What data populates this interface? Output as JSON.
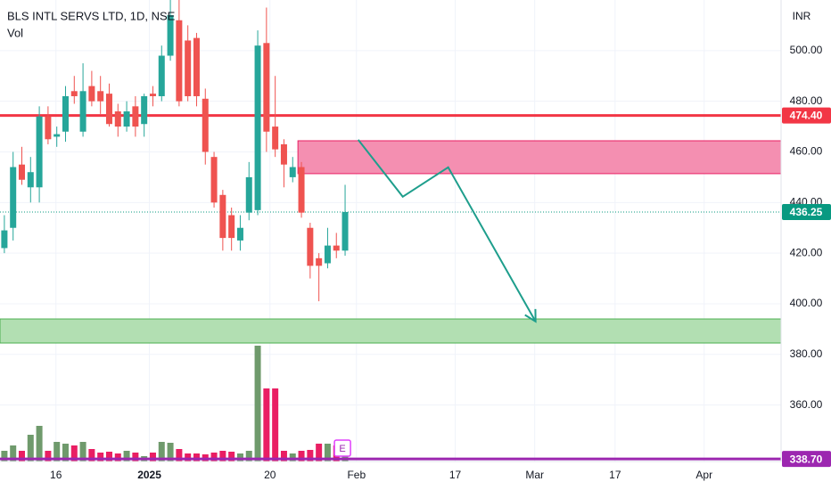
{
  "chart_data": {
    "type": "candlestick",
    "title": "BLS INTL SERVS LTD, 1D, NSE",
    "currency": "INR",
    "up_color": "#26a69a",
    "down_color": "#ef5350",
    "x": [
      0,
      1,
      2,
      3,
      4,
      5,
      6,
      7,
      8,
      9,
      10,
      11,
      12,
      13,
      14,
      15,
      16,
      17,
      18,
      19,
      20,
      21,
      22,
      23,
      24,
      25,
      26,
      27,
      28,
      29,
      30,
      31,
      32,
      33,
      34,
      35,
      36,
      37,
      38,
      39
    ],
    "open": [
      422,
      430,
      455,
      446,
      446,
      474,
      466,
      468,
      484,
      468,
      486,
      484,
      483,
      476,
      470,
      478,
      471,
      483,
      482,
      498,
      512,
      504,
      505,
      481,
      458,
      443,
      435,
      425,
      436,
      437,
      503,
      470,
      463,
      450,
      454,
      430,
      418,
      416,
      423,
      421
    ],
    "high": [
      435,
      460,
      462,
      458,
      478,
      478,
      470,
      486,
      490,
      495,
      492,
      490,
      487,
      479,
      480,
      482,
      483,
      486,
      502,
      520,
      520,
      510,
      507,
      485,
      460,
      445,
      438,
      435,
      456,
      508,
      517,
      490,
      465,
      458,
      456,
      432,
      420,
      430,
      428,
      447
    ],
    "low": [
      420,
      425,
      447,
      440,
      440,
      463,
      462,
      464,
      479,
      466,
      478,
      475,
      470,
      466,
      468,
      466,
      466,
      478,
      480,
      496,
      478,
      480,
      478,
      455,
      438,
      421,
      421,
      421,
      433,
      435,
      460,
      458,
      446,
      448,
      434,
      410,
      401,
      414,
      418,
      419
    ],
    "close": [
      429,
      454,
      449,
      452,
      474,
      465,
      467,
      482,
      482,
      484,
      480,
      480,
      471,
      470,
      476,
      470,
      482,
      482,
      498,
      514,
      480,
      482,
      482,
      460,
      440,
      426,
      426,
      430,
      450,
      502,
      468,
      461,
      455,
      454,
      436,
      415,
      415,
      423,
      421,
      436.25
    ],
    "volume": {
      "name": "Vol",
      "up_color": "#6f9a6c",
      "down_color": "#e91e63",
      "values": [
        1.2,
        1.8,
        1.2,
        3,
        4,
        1.2,
        2.2,
        2,
        1.8,
        2.2,
        1.4,
        1,
        1.1,
        0.9,
        1.2,
        1,
        0.6,
        1,
        2.2,
        2.1,
        1.4,
        0.9,
        0.9,
        0.8,
        1,
        1.2,
        1.1,
        0.9,
        1.2,
        13,
        8.2,
        8.2,
        1.2,
        0.9,
        1.2,
        1.3,
        2,
        2,
        1.8,
        1.5
      ]
    },
    "xlim": [
      -0.5,
      88.9
    ],
    "xticks": [
      {
        "value": 5.9,
        "label": "16"
      },
      {
        "value": 16.6,
        "label": "2025"
      },
      {
        "value": 30.4,
        "label": "20"
      },
      {
        "value": 40.3,
        "label": "Feb"
      },
      {
        "value": 51.6,
        "label": "17"
      },
      {
        "value": 60.7,
        "label": "Mar"
      },
      {
        "value": 69.9,
        "label": "17"
      },
      {
        "value": 80.1,
        "label": "Apr"
      }
    ],
    "ylim": [
      337.7,
      520
    ],
    "yticks": [
      {
        "value": 500,
        "label": "500.00"
      },
      {
        "value": 480,
        "label": "480.00"
      },
      {
        "value": 460,
        "label": "460.00"
      },
      {
        "value": 440,
        "label": "440.00"
      },
      {
        "value": 420,
        "label": "420.00"
      },
      {
        "value": 400,
        "label": "400.00"
      },
      {
        "value": 380,
        "label": "380.00"
      },
      {
        "value": 360,
        "label": "360.00"
      }
    ],
    "grid": true,
    "price_lines": [
      {
        "value": 474.4,
        "label": "474.40",
        "color": "#f23645",
        "style": "solid"
      },
      {
        "value": 436.25,
        "label": "436.25",
        "color": "#089981",
        "style": "dotted"
      },
      {
        "value": 338.7,
        "label": "338.70",
        "color": "#9c27b0",
        "style": "solid"
      }
    ],
    "zones": [
      {
        "x": [
          33.6,
          88.9
        ],
        "y": [
          451.4,
          464.4
        ],
        "color": "#f48fb1",
        "border": "#e91e63"
      },
      {
        "x": [
          -0.5,
          88.9
        ],
        "y": [
          384.5,
          394.0
        ],
        "color": "#b2dfb2",
        "border": "#4caf50"
      }
    ],
    "arrow": {
      "x": [
        40.5,
        45.6,
        50.8,
        60.8
      ],
      "y": [
        464.8,
        442.3,
        453.9,
        393.0
      ],
      "color": "#1e9e8c"
    },
    "earnings": {
      "x": 38.7,
      "label": "E"
    }
  }
}
